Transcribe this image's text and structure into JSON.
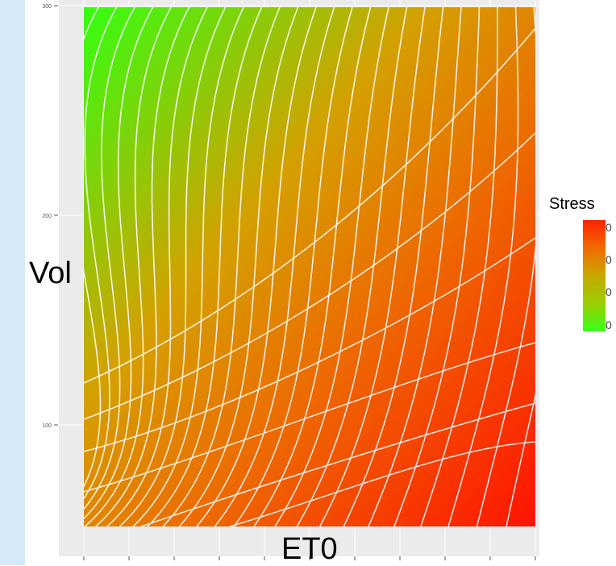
{
  "chart_data": {
    "type": "heatmap",
    "title": "",
    "xlabel": "ET0",
    "ylabel": "Vol",
    "ylim": [
      40,
      300
    ],
    "yticks": [
      100,
      200,
      300
    ],
    "ytick_labels": [
      "100",
      "200",
      "300"
    ],
    "legend": {
      "title": "Stress",
      "position": "right",
      "tick_labels": [
        "0",
        "0",
        "0",
        "0"
      ]
    },
    "colors": {
      "low": "#33ff11",
      "mid": "#e08a00",
      "high": "#ff1a00",
      "contour": "#ffffff",
      "panel": "#ebebeb"
    },
    "grid": true
  }
}
